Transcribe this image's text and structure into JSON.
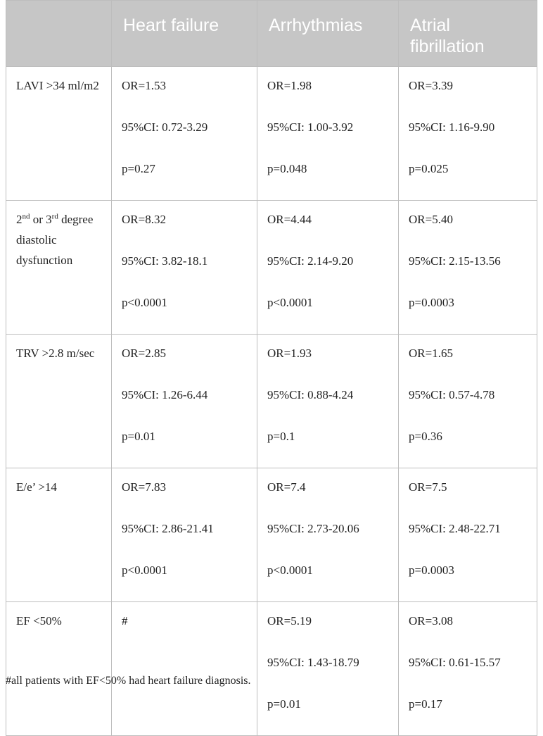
{
  "table": {
    "header": [
      "",
      "Heart failure",
      "Arrhythmias",
      "Atrial fibrillation"
    ],
    "rows": [
      {
        "label": [
          {
            "text": "LAVI >34 ml/m2"
          }
        ],
        "cells": [
          [
            "OR=1.53",
            "95%CI: 0.72-3.29",
            "p=0.27"
          ],
          [
            "OR=1.98",
            "95%CI: 1.00-3.92",
            "p=0.048"
          ],
          [
            "OR=3.39",
            "95%CI: 1.16-9.90",
            "p=0.025"
          ]
        ]
      },
      {
        "label": [
          {
            "text": "2"
          },
          {
            "sup": "nd"
          },
          {
            "text": " or 3"
          },
          {
            "sup": "rd"
          },
          {
            "text": " degree diastolic dysfunction"
          }
        ],
        "cells": [
          [
            "OR=8.32",
            "95%CI: 3.82-18.1",
            "p<0.0001"
          ],
          [
            "OR=4.44",
            "95%CI: 2.14-9.20",
            "p<0.0001"
          ],
          [
            "OR=5.40",
            "95%CI: 2.15-13.56",
            "p=0.0003"
          ]
        ]
      },
      {
        "label": [
          {
            "text": "TRV >2.8 m/sec"
          }
        ],
        "cells": [
          [
            "OR=2.85",
            "95%CI: 1.26-6.44",
            "p=0.01"
          ],
          [
            "OR=1.93",
            "95%CI: 0.88-4.24",
            "p=0.1"
          ],
          [
            "OR=1.65",
            "95%CI: 0.57-4.78",
            "p=0.36"
          ]
        ]
      },
      {
        "label": [
          {
            "text": "E/e’ >14"
          }
        ],
        "cells": [
          [
            "OR=7.83",
            "95%CI: 2.86-21.41",
            "p<0.0001"
          ],
          [
            "OR=7.4",
            "95%CI: 2.73-20.06",
            "p<0.0001"
          ],
          [
            "OR=7.5",
            "95%CI: 2.48-22.71",
            "p=0.0003"
          ]
        ]
      },
      {
        "label": [
          {
            "text": "EF <50%"
          }
        ],
        "cells": [
          [
            "#"
          ],
          [
            "OR=5.19",
            "95%CI: 1.43-18.79",
            "p=0.01"
          ],
          [
            "OR=3.08",
            "95%CI: 0.61-15.57",
            "p=0.17"
          ]
        ]
      }
    ],
    "footnote": "#all patients with EF<50% had heart failure diagnosis."
  }
}
